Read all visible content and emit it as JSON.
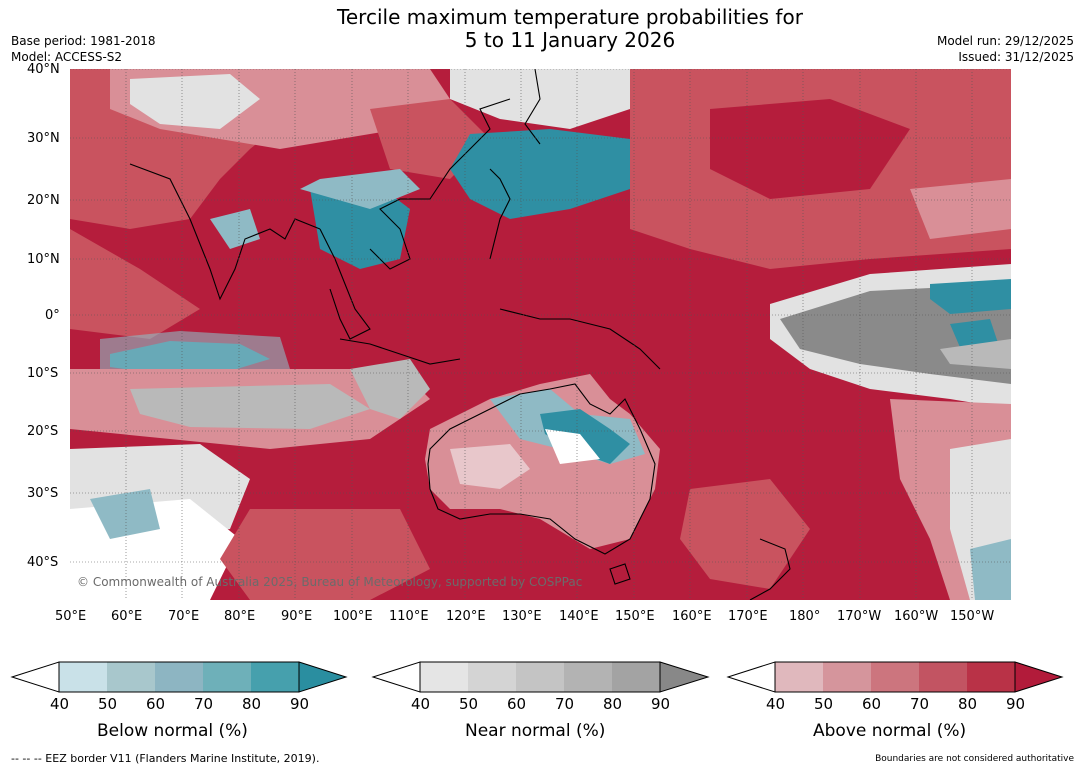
{
  "title": {
    "line1": "Tercile maximum temperature probabilities for",
    "line2": "5 to 11 January 2026"
  },
  "meta": {
    "base_period": "Base period: 1981-2018",
    "model": "Model: ACCESS-S2",
    "model_run": "Model run: 29/12/2025",
    "issued": "Issued: 31/12/2025"
  },
  "map": {
    "lat_labels": [
      "40°N",
      "30°N",
      "20°N",
      "10°N",
      "0°",
      "10°S",
      "20°S",
      "30°S",
      "40°S"
    ],
    "lon_labels": [
      "50°E",
      "60°E",
      "70°E",
      "80°E",
      "90°E",
      "100°E",
      "110°E",
      "120°E",
      "130°E",
      "140°E",
      "150°E",
      "160°E",
      "170°E",
      "180°",
      "170°W",
      "160°W",
      "150°W"
    ],
    "copyright": "© Commonwealth of Australia 2025, Bureau of Meteorology, supported by COSPPac",
    "colors": {
      "above_90": "#b51d3c",
      "above_70": "#c9535f",
      "above_50": "#d98f97",
      "near_high": "#8a8a8a",
      "near_mid": "#b9b9b9",
      "near_low": "#e2e2e2",
      "below_80": "#2f8fa3",
      "below_60": "#8fbac5",
      "below_40": "#cfe2e8"
    }
  },
  "colorbars": [
    {
      "label": "Below normal (%)",
      "ticks": [
        "40",
        "50",
        "60",
        "70",
        "80",
        "90"
      ],
      "colors": [
        "#c9e1e8",
        "#a8c7cc",
        "#8db5c2",
        "#6eb0b9",
        "#46a0ad",
        "#2a8ea0"
      ]
    },
    {
      "label": "Near normal (%)",
      "ticks": [
        "40",
        "50",
        "60",
        "70",
        "80",
        "90"
      ],
      "colors": [
        "#e5e5e5",
        "#d4d4d4",
        "#c4c4c4",
        "#b3b3b3",
        "#a3a3a3",
        "#888888"
      ]
    },
    {
      "label": "Above normal (%)",
      "ticks": [
        "40",
        "50",
        "60",
        "70",
        "80",
        "90"
      ],
      "colors": [
        "#e0b8bd",
        "#d5959c",
        "#cc757e",
        "#c25462",
        "#b93247",
        "#b21b3a"
      ]
    }
  ],
  "footer": {
    "eez": "--  --  -- EEZ border V11 (Flanders Marine Institute, 2019).",
    "authoritative": "Boundaries are not considered authoritative"
  }
}
